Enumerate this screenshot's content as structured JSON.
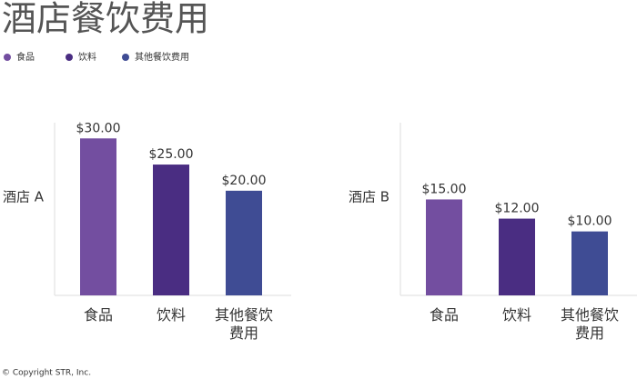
{
  "title": "酒店餐饮费用",
  "legend": [
    {
      "name": "食品",
      "color": "#734ea0"
    },
    {
      "name": "饮料",
      "color": "#4a2d82"
    },
    {
      "name": "其他餐饮费用",
      "color": "#3f4c94"
    }
  ],
  "footer": "© Copyright STR, Inc.",
  "chart_data": [
    {
      "type": "bar",
      "title": "酒店 A",
      "categories": [
        "食品",
        "饮料",
        "其他餐饮费用"
      ],
      "values": [
        30,
        25,
        20
      ],
      "value_labels": [
        "$30.00",
        "$25.00",
        "$20.00"
      ],
      "colors": [
        "#734ea0",
        "#4a2d82",
        "#3f4c94"
      ],
      "ylim": [
        0,
        33
      ]
    },
    {
      "type": "bar",
      "title": "酒店 B",
      "categories": [
        "食品",
        "饮料",
        "其他餐饮费用"
      ],
      "values": [
        15,
        12,
        10
      ],
      "value_labels": [
        "$15.00",
        "$12.00",
        "$10.00"
      ],
      "colors": [
        "#734ea0",
        "#4a2d82",
        "#3f4c94"
      ],
      "ylim": [
        0,
        27
      ]
    }
  ]
}
